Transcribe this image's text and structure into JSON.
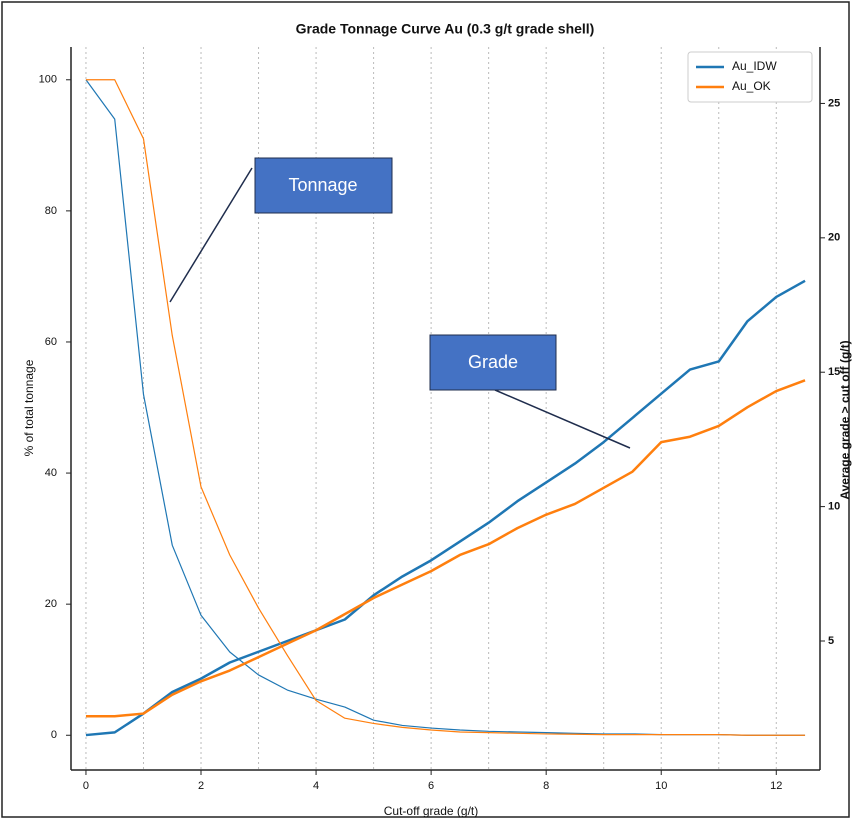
{
  "chart_data": {
    "type": "line",
    "title": "Grade Tonnage Curve Au (0.3 g/t grade shell)",
    "x_label": "Cut-off grade (g/t)",
    "y_label": "% of total tonnage",
    "y2_label": "Average grade > cut off (g/t)",
    "x": [
      0,
      0.5,
      1,
      1.5,
      2,
      2.5,
      3,
      3.5,
      4,
      4.5,
      5,
      5.5,
      6,
      6.5,
      7,
      7.5,
      8,
      8.5,
      9,
      9.5,
      10,
      10.5,
      11,
      11.5,
      12,
      12.5
    ],
    "series": [
      {
        "name": "Au_IDW",
        "color": "#1f77b4",
        "tonnage": [
          100,
          94,
          52,
          29,
          18.3,
          12.7,
          9.2,
          6.9,
          5.5,
          4.3,
          2.3,
          1.5,
          1.1,
          0.8,
          0.6,
          0.5,
          0.4,
          0.3,
          0.2,
          0.2,
          0.1,
          0.1,
          0.1,
          0,
          0,
          0
        ],
        "grade": [
          1.5,
          1.6,
          2.3,
          3.1,
          3.6,
          4.2,
          4.6,
          5.0,
          5.4,
          5.8,
          6.7,
          7.4,
          8.0,
          8.7,
          9.4,
          10.2,
          10.9,
          11.6,
          12.4,
          13.3,
          14.2,
          15.1,
          15.4,
          16.9,
          17.8,
          18.4
        ]
      },
      {
        "name": "Au_OK",
        "color": "#ff7f0e",
        "tonnage": [
          100,
          100,
          91,
          61,
          37.9,
          27.5,
          19.4,
          12.2,
          5.3,
          2.6,
          1.8,
          1.2,
          0.8,
          0.5,
          0.4,
          0.3,
          0.2,
          0.15,
          0.1,
          0.1,
          0.1,
          0.1,
          0.1,
          0,
          0,
          0
        ],
        "grade": [
          2.2,
          2.2,
          2.3,
          3.0,
          3.5,
          3.9,
          4.4,
          4.9,
          5.4,
          6.0,
          6.6,
          7.1,
          7.6,
          8.2,
          8.6,
          9.2,
          9.7,
          10.1,
          10.7,
          11.3,
          12.4,
          12.6,
          13.0,
          13.7,
          14.3,
          14.7
        ]
      }
    ],
    "xlim": [
      -0.26,
      12.76
    ],
    "xticks": [
      0,
      2,
      4,
      6,
      8,
      10,
      12
    ],
    "xgrid": [
      0,
      1,
      2,
      3,
      4,
      5,
      6,
      7,
      8,
      9,
      10,
      11,
      12
    ],
    "ylim": [
      -5.3,
      105
    ],
    "yticks": [
      0,
      20,
      40,
      60,
      80,
      100
    ],
    "y2lim": [
      0.2,
      27.1
    ],
    "y2ticks": [
      5,
      10,
      15,
      20,
      25
    ],
    "legend": "upper right",
    "annotations": [
      {
        "text": "Tonnage"
      },
      {
        "text": "Grade"
      }
    ]
  }
}
